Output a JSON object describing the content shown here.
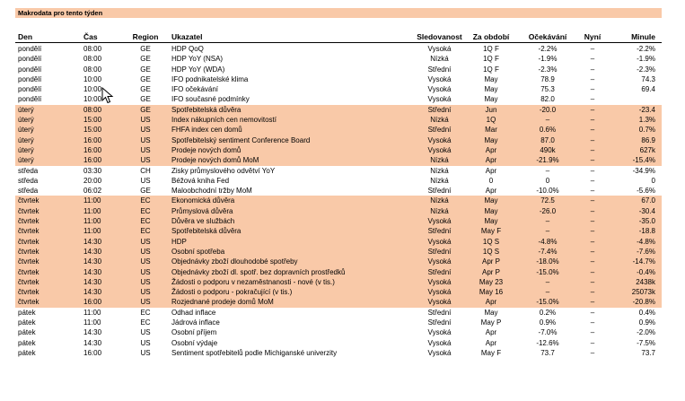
{
  "title": "Makrodata pro tento týden",
  "headers": {
    "den": "Den",
    "cas": "Čas",
    "region": "Region",
    "ukazatel": "Ukazatel",
    "sledovanost": "Sledovanost",
    "za_obdobi": "Za období",
    "ocekavani": "Očekávání",
    "nyni": "Nyní",
    "minule": "Minule"
  },
  "colors": {
    "highlight": "#f9c9a8"
  },
  "rows": [
    {
      "den": "pondělí",
      "cas": "08:00",
      "region": "GE",
      "ukazatel": "HDP QoQ",
      "sledovanost": "Vysoká",
      "za_obdobi": "1Q F",
      "ocekavani": "-2.2%",
      "nyni": "–",
      "minule": "-2.2%",
      "hl": false
    },
    {
      "den": "pondělí",
      "cas": "08:00",
      "region": "GE",
      "ukazatel": "HDP YoY (NSA)",
      "sledovanost": "Nízká",
      "za_obdobi": "1Q F",
      "ocekavani": "-1.9%",
      "nyni": "–",
      "minule": "-1.9%",
      "hl": false
    },
    {
      "den": "pondělí",
      "cas": "08:00",
      "region": "GE",
      "ukazatel": "HDP YoY (WDA)",
      "sledovanost": "Střední",
      "za_obdobi": "1Q F",
      "ocekavani": "-2.3%",
      "nyni": "–",
      "minule": "-2.3%",
      "hl": false
    },
    {
      "den": "pondělí",
      "cas": "10:00",
      "region": "GE",
      "ukazatel": "IFO podnikatelské klima",
      "sledovanost": "Vysoká",
      "za_obdobi": "May",
      "ocekavani": "78.9",
      "nyni": "–",
      "minule": "74.3",
      "hl": false
    },
    {
      "den": "pondělí",
      "cas": "10:00",
      "region": "GE",
      "ukazatel": "IFO očekávání",
      "sledovanost": "Vysoká",
      "za_obdobi": "May",
      "ocekavani": "75.3",
      "nyni": "–",
      "minule": "69.4",
      "hl": false
    },
    {
      "den": "pondělí",
      "cas": "10:00",
      "region": "GE",
      "ukazatel": "IFO současné podmínky",
      "sledovanost": "Vysoká",
      "za_obdobi": "May",
      "ocekavani": "82.0",
      "nyni": "–",
      "minule": "",
      "hl": false
    },
    {
      "den": "úterý",
      "cas": "08:00",
      "region": "GE",
      "ukazatel": "Spotřebitelská důvěra",
      "sledovanost": "Střední",
      "za_obdobi": "Jun",
      "ocekavani": "-20.0",
      "nyni": "–",
      "minule": "-23.4",
      "hl": true
    },
    {
      "den": "úterý",
      "cas": "15:00",
      "region": "US",
      "ukazatel": "Index nákupních cen nemovitostí",
      "sledovanost": "Nízká",
      "za_obdobi": "1Q",
      "ocekavani": "–",
      "nyni": "–",
      "minule": "1.3%",
      "hl": true
    },
    {
      "den": "úterý",
      "cas": "15:00",
      "region": "US",
      "ukazatel": "FHFA index cen domů",
      "sledovanost": "Střední",
      "za_obdobi": "Mar",
      "ocekavani": "0.6%",
      "nyni": "–",
      "minule": "0.7%",
      "hl": true
    },
    {
      "den": "úterý",
      "cas": "16:00",
      "region": "US",
      "ukazatel": "Spotřebitelský sentiment Conference Board",
      "sledovanost": "Vysoká",
      "za_obdobi": "May",
      "ocekavani": "87.0",
      "nyni": "–",
      "minule": "86.9",
      "hl": true
    },
    {
      "den": "úterý",
      "cas": "16:00",
      "region": "US",
      "ukazatel": "Prodeje nových domů",
      "sledovanost": "Vysoká",
      "za_obdobi": "Apr",
      "ocekavani": "490k",
      "nyni": "–",
      "minule": "627k",
      "hl": true
    },
    {
      "den": "úterý",
      "cas": "16:00",
      "region": "US",
      "ukazatel": "Prodeje nových domů MoM",
      "sledovanost": "Nízká",
      "za_obdobi": "Apr",
      "ocekavani": "-21.9%",
      "nyni": "–",
      "minule": "-15.4%",
      "hl": true
    },
    {
      "den": "středa",
      "cas": "03:30",
      "region": "CH",
      "ukazatel": "Zisky průmyslového odvětví YoY",
      "sledovanost": "Nízká",
      "za_obdobi": "Apr",
      "ocekavani": "–",
      "nyni": "–",
      "minule": "-34.9%",
      "hl": false
    },
    {
      "den": "středa",
      "cas": "20:00",
      "region": "US",
      "ukazatel": "Béžová kniha Fed",
      "sledovanost": "Nízká",
      "za_obdobi": "0",
      "ocekavani": "0",
      "nyni": "–",
      "minule": "0",
      "hl": false
    },
    {
      "den": "středa",
      "cas": "06:02",
      "region": "GE",
      "ukazatel": "Maloobchodní tržby MoM",
      "sledovanost": "Střední",
      "za_obdobi": "Apr",
      "ocekavani": "-10.0%",
      "nyni": "–",
      "minule": "-5.6%",
      "hl": false
    },
    {
      "den": "čtvrtek",
      "cas": "11:00",
      "region": "EC",
      "ukazatel": "Ekonomická důvěra",
      "sledovanost": "Nízká",
      "za_obdobi": "May",
      "ocekavani": "72.5",
      "nyni": "–",
      "minule": "67.0",
      "hl": true
    },
    {
      "den": "čtvrtek",
      "cas": "11:00",
      "region": "EC",
      "ukazatel": "Průmyslová důvěra",
      "sledovanost": "Nízká",
      "za_obdobi": "May",
      "ocekavani": "-26.0",
      "nyni": "–",
      "minule": "-30.4",
      "hl": true
    },
    {
      "den": "čtvrtek",
      "cas": "11:00",
      "region": "EC",
      "ukazatel": "Důvěra ve službách",
      "sledovanost": "Vysoká",
      "za_obdobi": "May",
      "ocekavani": "–",
      "nyni": "–",
      "minule": "-35.0",
      "hl": true
    },
    {
      "den": "čtvrtek",
      "cas": "11:00",
      "region": "EC",
      "ukazatel": "Spotřebitelská důvěra",
      "sledovanost": "Střední",
      "za_obdobi": "May F",
      "ocekavani": "–",
      "nyni": "–",
      "minule": "-18.8",
      "hl": true
    },
    {
      "den": "čtvrtek",
      "cas": "14:30",
      "region": "US",
      "ukazatel": "HDP",
      "sledovanost": "Vysoká",
      "za_obdobi": "1Q S",
      "ocekavani": "-4.8%",
      "nyni": "–",
      "minule": "-4.8%",
      "hl": true
    },
    {
      "den": "čtvrtek",
      "cas": "14:30",
      "region": "US",
      "ukazatel": "Osobní spotřeba",
      "sledovanost": "Střední",
      "za_obdobi": "1Q S",
      "ocekavani": "-7.4%",
      "nyni": "–",
      "minule": "-7.6%",
      "hl": true
    },
    {
      "den": "čtvrtek",
      "cas": "14:30",
      "region": "US",
      "ukazatel": "Objednávky zboží dlouhodobé spotřeby",
      "sledovanost": "Vysoká",
      "za_obdobi": "Apr P",
      "ocekavani": "-18.0%",
      "nyni": "–",
      "minule": "-14.7%",
      "hl": true
    },
    {
      "den": "čtvrtek",
      "cas": "14:30",
      "region": "US",
      "ukazatel": "Objednávky zboží dl. spotř. bez dopravních prostředků",
      "sledovanost": "Střední",
      "za_obdobi": "Apr P",
      "ocekavani": "-15.0%",
      "nyni": "–",
      "minule": "-0.4%",
      "hl": true
    },
    {
      "den": "čtvrtek",
      "cas": "14:30",
      "region": "US",
      "ukazatel": "Žádosti o podporu v nezaměstnanosti - nové (v tis.)",
      "sledovanost": "Vysoká",
      "za_obdobi": "May 23",
      "ocekavani": "–",
      "nyni": "–",
      "minule": "2438k",
      "hl": true
    },
    {
      "den": "čtvrtek",
      "cas": "14:30",
      "region": "US",
      "ukazatel": "Žádosti o podporu - pokračující (v tis.)",
      "sledovanost": "Vysoká",
      "za_obdobi": "May 16",
      "ocekavani": "–",
      "nyni": "–",
      "minule": "25073k",
      "hl": true
    },
    {
      "den": "čtvrtek",
      "cas": "16:00",
      "region": "US",
      "ukazatel": "Rozjednané prodeje domů MoM",
      "sledovanost": "Vysoká",
      "za_obdobi": "Apr",
      "ocekavani": "-15.0%",
      "nyni": "–",
      "minule": "-20.8%",
      "hl": true
    },
    {
      "den": "pátek",
      "cas": "11:00",
      "region": "EC",
      "ukazatel": "Odhad inflace",
      "sledovanost": "Střední",
      "za_obdobi": "May",
      "ocekavani": "0.2%",
      "nyni": "–",
      "minule": "0.4%",
      "hl": false
    },
    {
      "den": "pátek",
      "cas": "11:00",
      "region": "EC",
      "ukazatel": "Jádrová inflace",
      "sledovanost": "Střední",
      "za_obdobi": "May P",
      "ocekavani": "0.9%",
      "nyni": "–",
      "minule": "0.9%",
      "hl": false
    },
    {
      "den": "pátek",
      "cas": "14:30",
      "region": "US",
      "ukazatel": "Osobní příjem",
      "sledovanost": "Vysoká",
      "za_obdobi": "Apr",
      "ocekavani": "-7.0%",
      "nyni": "–",
      "minule": "-2.0%",
      "hl": false
    },
    {
      "den": "pátek",
      "cas": "14:30",
      "region": "US",
      "ukazatel": "Osobní výdaje",
      "sledovanost": "Vysoká",
      "za_obdobi": "Apr",
      "ocekavani": "-12.6%",
      "nyni": "–",
      "minule": "-7.5%",
      "hl": false
    },
    {
      "den": "pátek",
      "cas": "16:00",
      "region": "US",
      "ukazatel": "Sentiment spotřebitelů podle Michiganské univerzity",
      "sledovanost": "Vysoká",
      "za_obdobi": "May F",
      "ocekavani": "73.7",
      "nyni": "–",
      "minule": "73.7",
      "hl": false
    }
  ]
}
